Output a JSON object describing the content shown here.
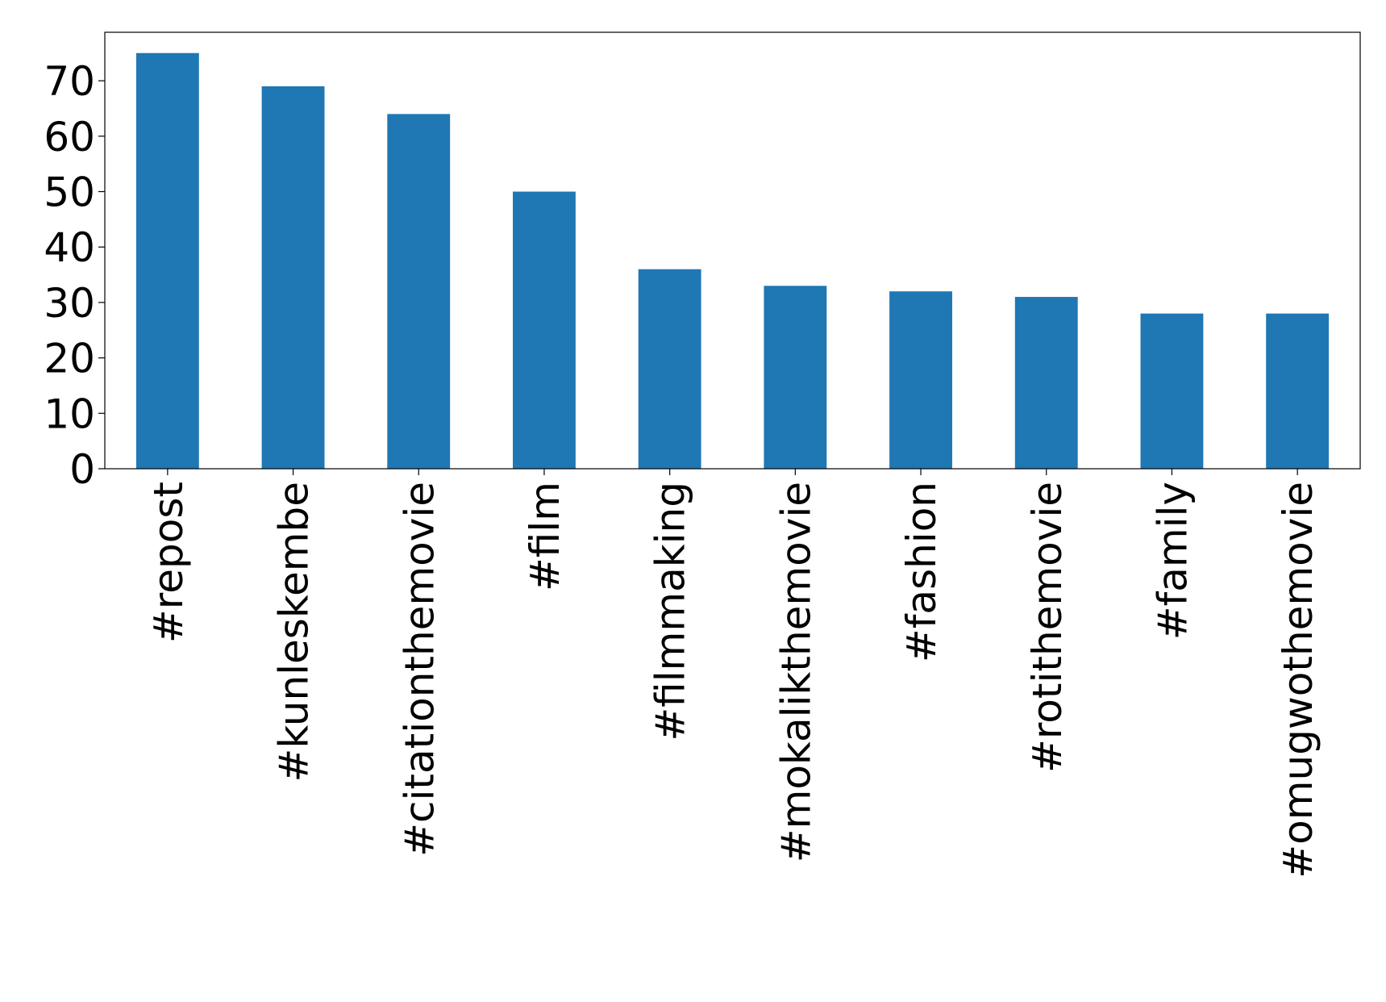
{
  "chart_data": {
    "type": "bar",
    "categories": [
      "#repost",
      "#kunleskembe",
      "#citationthemovie",
      "#film",
      "#filmmaking",
      "#mokalikthemovie",
      "#fashion",
      "#rotithemovie",
      "#family",
      "#omugwothemovie"
    ],
    "values": [
      75,
      69,
      64,
      50,
      36,
      33,
      32,
      31,
      28,
      28
    ],
    "color": "#1f77b4",
    "ylim": [
      0,
      78.75
    ],
    "yticks": [
      0,
      10,
      20,
      30,
      40,
      50,
      60,
      70
    ],
    "grid": false
  }
}
